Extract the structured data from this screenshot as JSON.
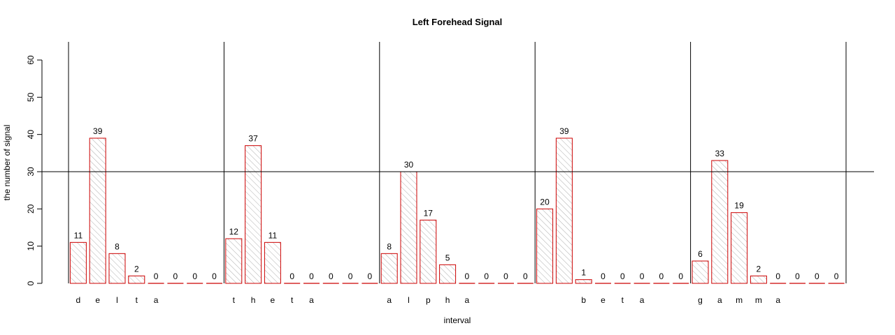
{
  "chart_data": {
    "type": "bar",
    "title": "Left Forehead Signal",
    "xlabel": "interval",
    "ylabel": "the number of signal",
    "ylim": [
      0,
      60
    ],
    "yticks": [
      0,
      10,
      20,
      30,
      40,
      50,
      60
    ],
    "reference_line_y": 30,
    "bar_fill_color": "#ffffff",
    "bar_border_color": "#cc0000",
    "hatch_color": "#999999",
    "groups": [
      {
        "letters": [
          "d",
          "e",
          "l",
          "t",
          "a",
          "",
          "",
          ""
        ],
        "values": [
          11,
          39,
          8,
          2,
          0,
          0,
          0,
          0
        ]
      },
      {
        "letters": [
          "t",
          "h",
          "e",
          "t",
          "a",
          "",
          "",
          ""
        ],
        "values": [
          12,
          37,
          11,
          0,
          0,
          0,
          0,
          0
        ]
      },
      {
        "letters": [
          "a",
          "l",
          "p",
          "h",
          "a",
          "",
          "",
          ""
        ],
        "values": [
          8,
          30,
          17,
          5,
          0,
          0,
          0,
          0
        ]
      },
      {
        "letters": [
          "",
          "",
          "b",
          "e",
          "t",
          "a",
          "",
          ""
        ],
        "values": [
          20,
          39,
          1,
          0,
          0,
          0,
          0,
          0
        ]
      },
      {
        "letters": [
          "g",
          "a",
          "m",
          "m",
          "a",
          "",
          "",
          ""
        ],
        "values": [
          6,
          33,
          19,
          2,
          0,
          0,
          0,
          0
        ]
      }
    ]
  }
}
